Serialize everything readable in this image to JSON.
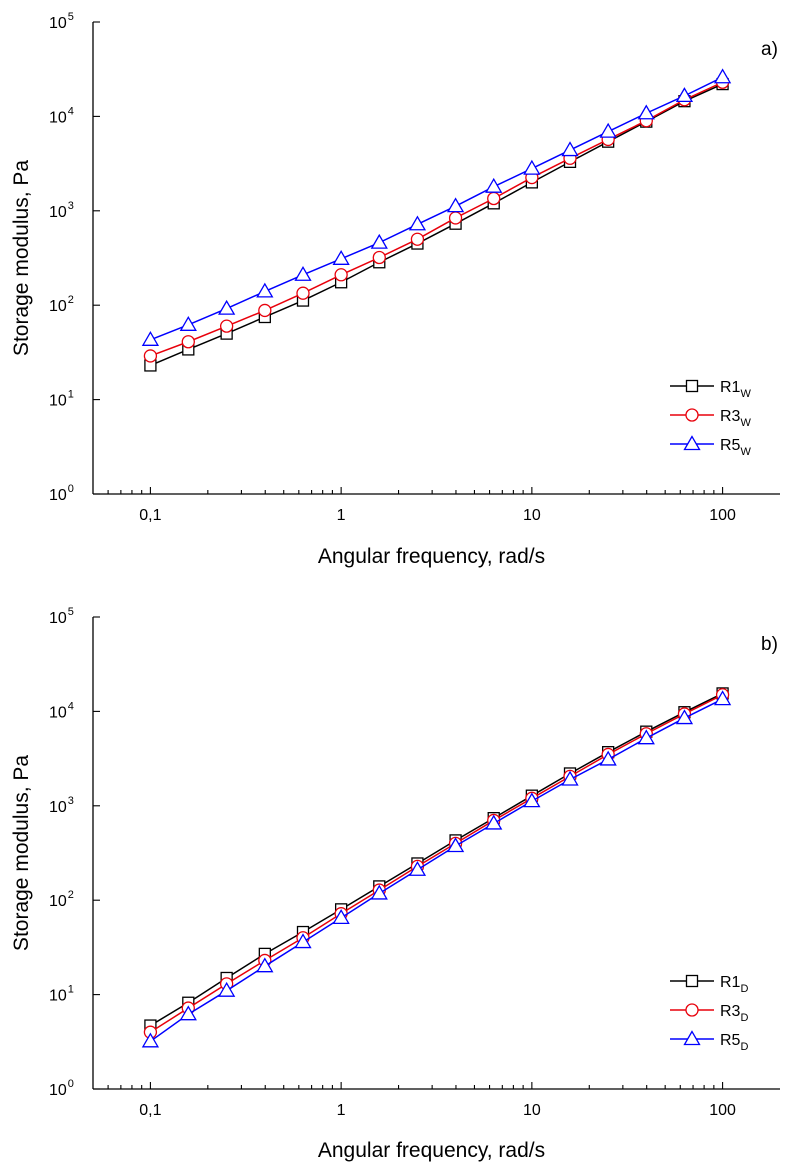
{
  "chart_data": [
    {
      "type": "line",
      "panel_label": "a)",
      "xlabel": "Angular frequency, rad/s",
      "ylabel": "Storage modulus, Pa",
      "xscale": "log",
      "yscale": "log",
      "xlim": [
        0.05,
        200
      ],
      "ylim": [
        1,
        100000
      ],
      "xtick_values": [
        0.1,
        1,
        10,
        100
      ],
      "xtick_labels": [
        "0,1",
        "1",
        "10",
        "100"
      ],
      "ytick_values": [
        1,
        10,
        100,
        1000,
        10000,
        100000
      ],
      "ytick_bases": [
        "10",
        "10",
        "10",
        "10",
        "10",
        "10"
      ],
      "ytick_exponents": [
        "0",
        "1",
        "2",
        "3",
        "4",
        "5"
      ],
      "legend_position": "bottom-right",
      "grid": false,
      "x": [
        0.1,
        0.158,
        0.251,
        0.398,
        0.631,
        1,
        1.585,
        2.512,
        3.981,
        6.31,
        10,
        15.85,
        25.12,
        39.81,
        63.1,
        100
      ],
      "series": [
        {
          "name": "R1",
          "subscript": "W",
          "color": "#000000",
          "marker": "square",
          "values": [
            23,
            34,
            50,
            75,
            112,
            175,
            285,
            450,
            730,
            1200,
            2000,
            3300,
            5400,
            8800,
            14500,
            22000
          ]
        },
        {
          "name": "R3",
          "subscript": "W",
          "color": "#e8000b",
          "marker": "circle",
          "values": [
            29,
            41,
            60,
            88,
            134,
            210,
            320,
            500,
            840,
            1350,
            2250,
            3600,
            5700,
            9000,
            15000,
            23000
          ]
        },
        {
          "name": "R5",
          "subscript": "W",
          "color": "#0000ff",
          "marker": "triangle",
          "values": [
            43,
            62,
            92,
            140,
            210,
            310,
            460,
            720,
            1120,
            1800,
            2800,
            4400,
            6900,
            10800,
            16500,
            26000
          ]
        }
      ]
    },
    {
      "type": "line",
      "panel_label": "b)",
      "xlabel": "Angular frequency, rad/s",
      "ylabel": "Storage modulus, Pa",
      "xscale": "log",
      "yscale": "log",
      "xlim": [
        0.05,
        200
      ],
      "ylim": [
        1,
        100000
      ],
      "xtick_values": [
        0.1,
        1,
        10,
        100
      ],
      "xtick_labels": [
        "0,1",
        "1",
        "10",
        "100"
      ],
      "ytick_values": [
        1,
        10,
        100,
        1000,
        10000,
        100000
      ],
      "ytick_bases": [
        "10",
        "10",
        "10",
        "10",
        "10",
        "10"
      ],
      "ytick_exponents": [
        "0",
        "1",
        "2",
        "3",
        "4",
        "5"
      ],
      "legend_position": "bottom-right",
      "grid": false,
      "x": [
        0.1,
        0.158,
        0.251,
        0.398,
        0.631,
        1,
        1.585,
        2.512,
        3.981,
        6.31,
        10,
        15.85,
        25.12,
        39.81,
        63.1,
        100
      ],
      "series": [
        {
          "name": "R1",
          "subscript": "D",
          "color": "#000000",
          "marker": "square",
          "values": [
            4.7,
            8.2,
            15,
            27,
            46,
            80,
            140,
            245,
            430,
            740,
            1280,
            2200,
            3700,
            6100,
            9800,
            15500
          ]
        },
        {
          "name": "R3",
          "subscript": "D",
          "color": "#e8000b",
          "marker": "circle",
          "values": [
            4.0,
            7.2,
            13,
            23,
            40,
            72,
            128,
            228,
            400,
            700,
            1200,
            2050,
            3500,
            5800,
            9400,
            15000
          ]
        },
        {
          "name": "R5",
          "subscript": "D",
          "color": "#0000ff",
          "marker": "triangle",
          "values": [
            3.2,
            6.2,
            11,
            20,
            36,
            65,
            118,
            210,
            375,
            650,
            1120,
            1900,
            3100,
            5200,
            8500,
            13500
          ]
        }
      ]
    }
  ]
}
